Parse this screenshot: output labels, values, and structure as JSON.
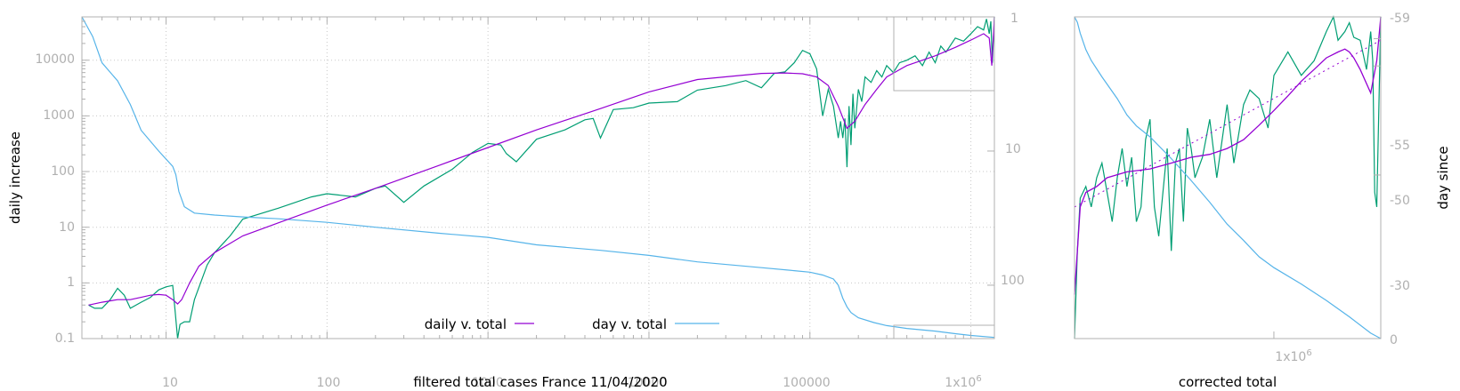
{
  "colors": {
    "daily": "#9400d3",
    "day": "#56b4e9",
    "raw": "#009e73",
    "grid": "#c8c8c8",
    "axis": "#b0b0b0"
  },
  "chart_data": [
    {
      "type": "line",
      "title": "",
      "xlabel": "filtered total cases France 11/04/2020",
      "ylabel": "daily increase",
      "y2label": "",
      "xscale": "log",
      "yscale": "log",
      "y2scale": "log",
      "xlim": [
        3,
        1400000
      ],
      "ylim": [
        0.1,
        60000
      ],
      "y2lim": [
        1,
        250
      ],
      "y2reversed": true,
      "grid": true,
      "legend_position": "bottom-center",
      "xticks": [
        "10",
        "100",
        "1000",
        "10000",
        "100000",
        "1x10^6"
      ],
      "yticks": [
        "0.1",
        "1",
        "10",
        "100",
        "1000",
        "10000"
      ],
      "y2ticks": [
        "1",
        "10",
        "100"
      ],
      "series": [
        {
          "name": "daily v. total",
          "axis": "y",
          "x": [
            3.3,
            4,
            5,
            6,
            7,
            8,
            9,
            10,
            11,
            11.8,
            12.5,
            14,
            16,
            20,
            30,
            50,
            100,
            200,
            500,
            1000,
            2000,
            5000,
            10000,
            20000,
            50000,
            70000,
            90000,
            110000,
            130000,
            150000,
            170000,
            190000,
            220000,
            260000,
            300000,
            400000,
            600000,
            800000,
            1000000,
            1200000,
            1300000,
            1350000,
            1400000
          ],
          "y": [
            0.4,
            0.45,
            0.5,
            0.5,
            0.55,
            0.6,
            0.62,
            0.6,
            0.5,
            0.42,
            0.5,
            1.0,
            2.0,
            3.5,
            7,
            12,
            25,
            50,
            130,
            270,
            560,
            1350,
            2700,
            4500,
            5800,
            5900,
            5700,
            5000,
            3500,
            1500,
            600,
            800,
            1600,
            3000,
            5000,
            8000,
            12000,
            17000,
            23000,
            30000,
            25000,
            8000,
            60000
          ]
        },
        {
          "name": "day v. total",
          "axis": "y2",
          "x": [
            3,
            3.5,
            4,
            5,
            6,
            7,
            9,
            11,
            11.5,
            12,
            13,
            15,
            20,
            30,
            50,
            100,
            200,
            500,
            1000,
            2000,
            5000,
            10000,
            20000,
            50000,
            80000,
            100000,
            120000,
            140000,
            150000,
            160000,
            170000,
            180000,
            200000,
            250000,
            300000,
            400000,
            600000,
            800000,
            1000000,
            1400000
          ],
          "y": [
            1,
            1.4,
            2.2,
            3,
            4.5,
            7,
            10,
            13,
            15,
            20,
            26,
            29,
            30,
            31,
            32,
            34,
            37,
            41,
            44,
            50,
            55,
            60,
            67,
            74,
            78,
            80,
            84,
            90,
            100,
            125,
            145,
            160,
            175,
            190,
            200,
            210,
            220,
            230,
            237,
            245
          ]
        },
        {
          "name": "",
          "axis": "y",
          "x": [
            3.3,
            3.6,
            4,
            4.5,
            5,
            5.5,
            6,
            7,
            8,
            9,
            10,
            11,
            11.4,
            11.8,
            12.2,
            13,
            14,
            15,
            18,
            20,
            25,
            30,
            50,
            80,
            100,
            150,
            200,
            230,
            300,
            400,
            600,
            800,
            1000,
            1200,
            1300,
            1500,
            2000,
            3000,
            4000,
            4500,
            5000,
            6000,
            8000,
            10000,
            15000,
            20000,
            30000,
            40000,
            50000,
            60000,
            70000,
            80000,
            90000,
            100000,
            110000,
            120000,
            130000,
            140000,
            150000,
            155000,
            160000,
            165000,
            170000,
            175000,
            180000,
            185000,
            190000,
            200000,
            210000,
            220000,
            240000,
            260000,
            280000,
            300000,
            330000,
            360000,
            400000,
            450000,
            500000,
            550000,
            600000,
            650000,
            700000,
            800000,
            900000,
            1000000,
            1100000,
            1200000,
            1250000,
            1300000,
            1330000,
            1360000,
            1400000
          ],
          "y": [
            0.4,
            0.35,
            0.35,
            0.5,
            0.8,
            0.6,
            0.35,
            0.45,
            0.55,
            0.75,
            0.85,
            0.9,
            0.3,
            0.1,
            0.18,
            0.2,
            0.2,
            0.5,
            2.1,
            3.5,
            7,
            14,
            22,
            35,
            40,
            35,
            50,
            55,
            28,
            55,
            110,
            220,
            320,
            300,
            210,
            150,
            380,
            560,
            850,
            900,
            400,
            1300,
            1400,
            1700,
            1800,
            2900,
            3500,
            4300,
            3200,
            5800,
            6200,
            9000,
            15000,
            13000,
            7000,
            1000,
            3000,
            1500,
            400,
            800,
            400,
            900,
            120,
            1500,
            300,
            2500,
            600,
            3000,
            1800,
            5000,
            4000,
            6500,
            5000,
            8000,
            6000,
            9000,
            10000,
            12000,
            8000,
            14000,
            9000,
            18000,
            14000,
            25000,
            22000,
            30000,
            40000,
            35000,
            55000,
            30000,
            50000,
            9000,
            60000
          ]
        }
      ]
    },
    {
      "type": "line",
      "title": "",
      "xlabel": "corrected total",
      "ylabel": "",
      "y2label": "day since",
      "xscale": "log",
      "xlim": [
        500000,
        1450000
      ],
      "ylim": [
        -0.1,
        1
      ],
      "y2lim": [
        0,
        -59
      ],
      "grid": false,
      "xticks": [
        "1x10^6"
      ],
      "y2ticks": [
        "-59",
        "-55",
        "-50",
        "-30",
        "0"
      ],
      "series": [
        {
          "name": "",
          "axis": "y",
          "x": [
            500000,
            505000,
            510000,
            520000,
            540000,
            560000,
            600000,
            650000,
            700000,
            750000,
            800000,
            850000,
            900000,
            950000,
            1000000,
            1050000,
            1100000,
            1150000,
            1200000,
            1250000,
            1280000,
            1300000,
            1320000,
            1350000,
            1400000,
            1430000,
            1450000
          ],
          "y": [
            0.05,
            0.2,
            0.35,
            0.4,
            0.42,
            0.45,
            0.47,
            0.48,
            0.5,
            0.52,
            0.53,
            0.55,
            0.58,
            0.63,
            0.68,
            0.73,
            0.78,
            0.82,
            0.86,
            0.88,
            0.89,
            0.88,
            0.86,
            0.82,
            0.74,
            0.85,
            1.0
          ]
        },
        {
          "name": "",
          "axis": "y",
          "x": [
            500000,
            1450000
          ],
          "y": [
            0.35,
            0.92
          ]
        },
        {
          "name": "",
          "axis": "y",
          "x": [
            500000,
            505000,
            510000,
            520000,
            530000,
            540000,
            550000,
            560000,
            570000,
            580000,
            590000,
            600000,
            610000,
            620000,
            630000,
            640000,
            650000,
            660000,
            670000,
            680000,
            690000,
            700000,
            710000,
            720000,
            730000,
            740000,
            750000,
            760000,
            780000,
            800000,
            820000,
            850000,
            870000,
            900000,
            920000,
            950000,
            980000,
            1000000,
            1050000,
            1100000,
            1150000,
            1200000,
            1230000,
            1250000,
            1280000,
            1300000,
            1320000,
            1350000,
            1380000,
            1400000,
            1410000,
            1420000,
            1430000,
            1450000
          ],
          "y": [
            -0.1,
            0.2,
            0.38,
            0.42,
            0.35,
            0.45,
            0.5,
            0.4,
            0.3,
            0.45,
            0.55,
            0.42,
            0.52,
            0.3,
            0.35,
            0.58,
            0.65,
            0.35,
            0.25,
            0.4,
            0.55,
            0.2,
            0.5,
            0.55,
            0.3,
            0.62,
            0.55,
            0.45,
            0.52,
            0.65,
            0.45,
            0.7,
            0.5,
            0.7,
            0.75,
            0.72,
            0.62,
            0.8,
            0.88,
            0.8,
            0.85,
            0.95,
            1.0,
            0.92,
            0.95,
            0.98,
            0.93,
            0.92,
            0.82,
            0.95,
            0.85,
            0.4,
            0.35,
            1.0
          ]
        },
        {
          "name": "",
          "axis": "y2",
          "x": [
            500000,
            505000,
            510000,
            520000,
            530000,
            550000,
            580000,
            600000,
            620000,
            650000,
            700000,
            750000,
            800000,
            850000,
            900000,
            950000,
            1000000,
            1100000,
            1200000,
            1300000,
            1400000,
            1450000
          ],
          "y": [
            -59,
            -58,
            -56,
            -53,
            -51,
            -48,
            -44,
            -41,
            -39,
            -37,
            -33,
            -29,
            -25,
            -21,
            -18,
            -15,
            -13,
            -10,
            -7,
            -4,
            -1,
            0
          ]
        }
      ]
    }
  ],
  "legend": [
    {
      "label": "daily v. total"
    },
    {
      "label": "day v. total"
    }
  ],
  "labels": {
    "left_xlabel": "filtered total cases France 11/04/2020",
    "left_ylabel": "daily increase",
    "right_xlabel": "corrected total",
    "right_y2label": "day since"
  },
  "ticks": {
    "left_x": [
      "10",
      "100",
      "1000",
      "10000",
      "100000",
      "1x10",
      "6"
    ],
    "left_y": [
      "10000",
      "1000",
      "100",
      "10",
      "1",
      "0.1"
    ],
    "left_y2": [
      "1",
      "10",
      "100"
    ],
    "right_x": [
      "1x10",
      "6"
    ],
    "right_y2": [
      "-59",
      "-55",
      "-50",
      "-30",
      "0"
    ]
  }
}
